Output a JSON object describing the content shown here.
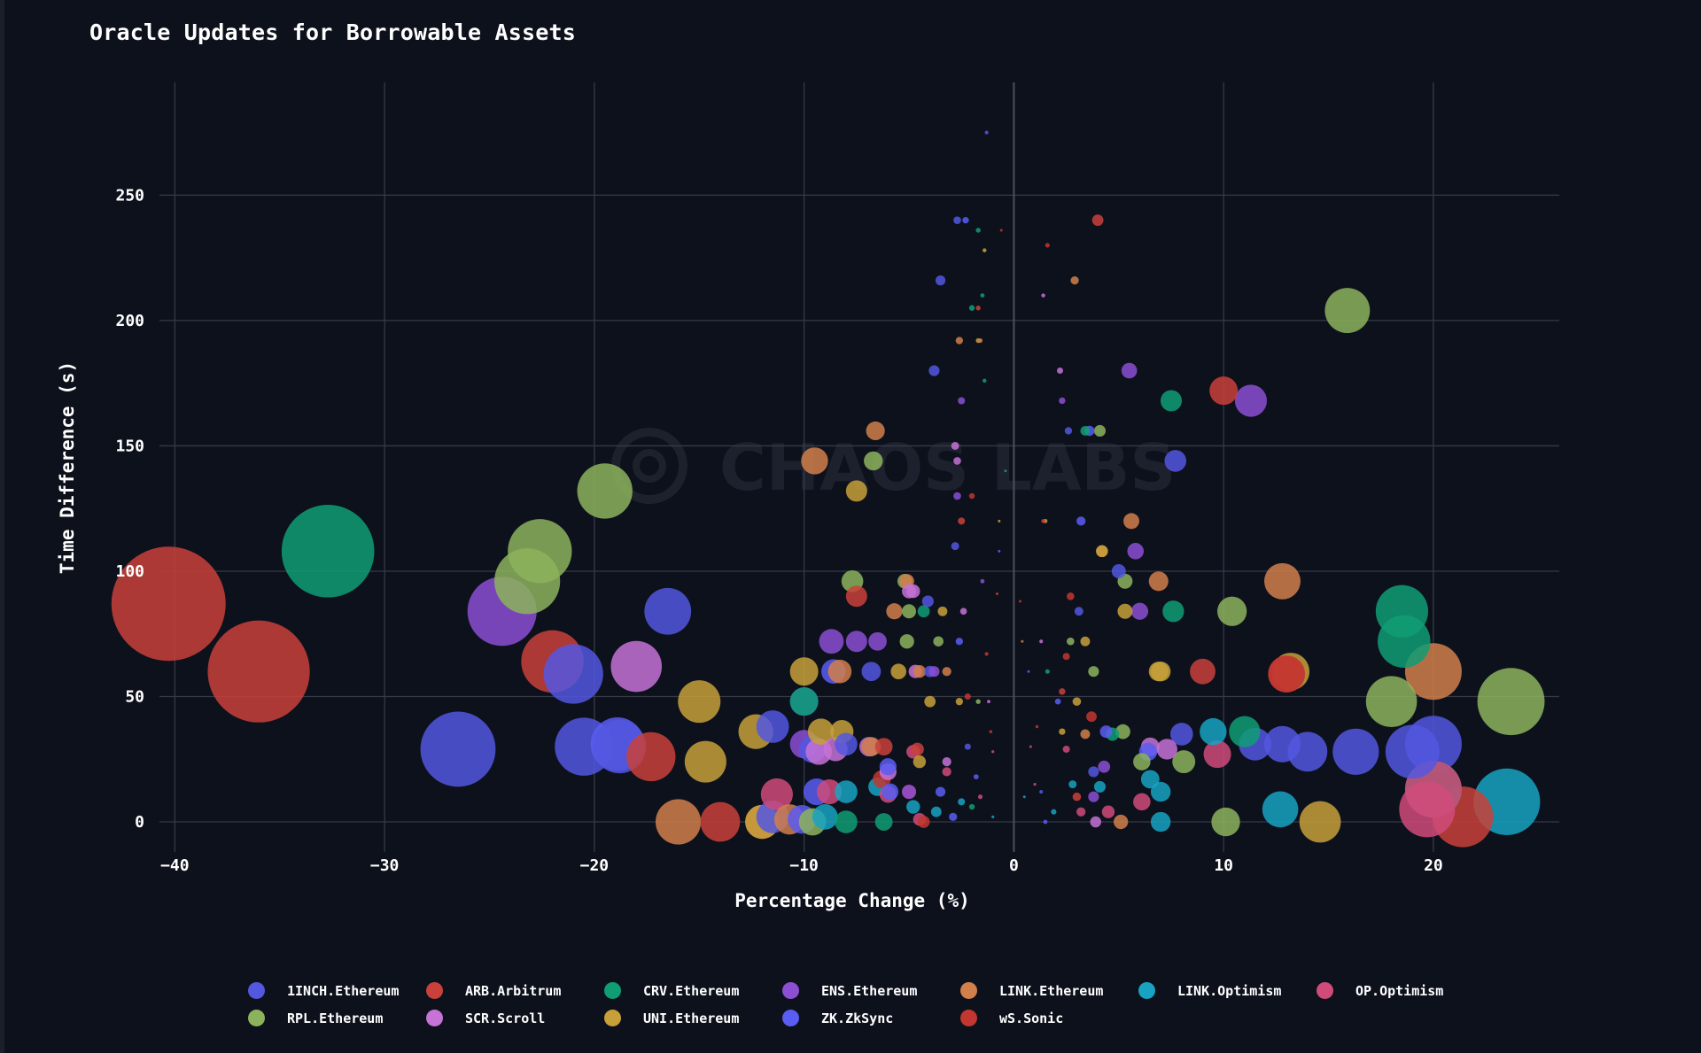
{
  "title": "Oracle Updates for Borrowable Assets",
  "watermark": "CHAOS LABS",
  "chart_data": {
    "type": "scatter",
    "title": "Oracle Updates for Borrowable Assets",
    "xlabel": "Percentage Change (%)",
    "ylabel": "Time Difference (s)",
    "xlim": [
      -42,
      26
    ],
    "ylim": [
      -12,
      295
    ],
    "xticks": [
      -40,
      -30,
      -20,
      -10,
      0,
      10,
      20
    ],
    "yticks": [
      0,
      50,
      100,
      150,
      200,
      250
    ],
    "grid": true,
    "legend_position": "bottom",
    "bubble_size": "proportional to |percentage change|",
    "series": [
      {
        "name": "1INCH.Ethereum",
        "color": "#5457e0",
        "points": [
          [
            -26.5,
            29
          ],
          [
            -20.5,
            30
          ],
          [
            -18.8,
            30
          ],
          [
            -16.5,
            84
          ],
          [
            -21,
            59
          ],
          [
            -11.5,
            38
          ],
          [
            -10,
            48
          ],
          [
            -9.6,
            29
          ],
          [
            -8,
            31
          ],
          [
            -6.8,
            60
          ],
          [
            -3.5,
            216
          ],
          [
            -3.8,
            180
          ],
          [
            -2.8,
            110
          ],
          [
            -1.3,
            275
          ],
          [
            -2.7,
            240
          ],
          [
            5,
            100
          ],
          [
            7.7,
            144
          ],
          [
            8,
            35
          ],
          [
            11.5,
            31
          ],
          [
            12.8,
            31
          ],
          [
            14,
            28
          ],
          [
            16.3,
            28
          ],
          [
            19,
            28
          ],
          [
            20,
            31
          ],
          [
            -11.5,
            2
          ],
          [
            -4.1,
            88
          ],
          [
            2.6,
            156
          ],
          [
            -2.2,
            30
          ],
          [
            3.1,
            84
          ],
          [
            1.3,
            12
          ],
          [
            -4,
            60
          ],
          [
            3.8,
            20
          ]
        ]
      },
      {
        "name": "ARB.Arbitrum",
        "color": "#c9413a",
        "points": [
          [
            -40.3,
            87
          ],
          [
            -36,
            60
          ],
          [
            -22,
            64
          ],
          [
            -17.3,
            26
          ],
          [
            -14,
            0
          ],
          [
            -7.5,
            90
          ],
          [
            -5,
            12
          ],
          [
            -1.7,
            205
          ],
          [
            4,
            240
          ],
          [
            9,
            60
          ],
          [
            10,
            172
          ],
          [
            13,
            59
          ],
          [
            21.4,
            2
          ],
          [
            -4.6,
            29
          ],
          [
            2.3,
            52
          ],
          [
            -2.5,
            120
          ],
          [
            1.4,
            120
          ],
          [
            -0.8,
            91
          ],
          [
            3,
            10
          ],
          [
            -6.2,
            30
          ]
        ]
      },
      {
        "name": "CRV.Ethereum",
        "color": "#0f9d74",
        "points": [
          [
            -32.7,
            108
          ],
          [
            -10,
            48
          ],
          [
            -8,
            0
          ],
          [
            -6.2,
            0
          ],
          [
            1.6,
            60
          ],
          [
            7.5,
            168
          ],
          [
            7.6,
            84
          ],
          [
            18.5,
            84
          ],
          [
            18.6,
            72
          ],
          [
            20,
            13
          ],
          [
            11,
            36
          ],
          [
            -1.4,
            176
          ],
          [
            -1.5,
            210
          ],
          [
            -1.7,
            236
          ],
          [
            -2,
            205
          ],
          [
            -4.3,
            84
          ],
          [
            3.4,
            156
          ],
          [
            -0.4,
            140
          ],
          [
            4.7,
            35
          ],
          [
            -2,
            6
          ]
        ]
      },
      {
        "name": "ENS.Ethereum",
        "color": "#8c4fd4",
        "points": [
          [
            -24.4,
            84
          ],
          [
            -8.7,
            72
          ],
          [
            -7.5,
            72
          ],
          [
            -6.5,
            72
          ],
          [
            -2.5,
            168
          ],
          [
            -2.7,
            130
          ],
          [
            -1.5,
            96
          ],
          [
            5.5,
            180
          ],
          [
            5.8,
            108
          ],
          [
            6,
            84
          ],
          [
            11.3,
            168
          ],
          [
            -3.8,
            60
          ],
          [
            2.3,
            168
          ],
          [
            -10,
            31
          ],
          [
            -5,
            12
          ],
          [
            4.3,
            22
          ],
          [
            3.8,
            10
          ]
        ]
      },
      {
        "name": "LINK.Ethereum",
        "color": "#d17f4b",
        "points": [
          [
            -9.5,
            144
          ],
          [
            -8.3,
            60
          ],
          [
            -6.6,
            156
          ],
          [
            -5.7,
            84
          ],
          [
            -5.1,
            96
          ],
          [
            -2.6,
            192
          ],
          [
            -1.6,
            192
          ],
          [
            2.9,
            216
          ],
          [
            4.2,
            108
          ],
          [
            5.6,
            120
          ],
          [
            6.9,
            96
          ],
          [
            12.8,
            96
          ],
          [
            20,
            60
          ],
          [
            -16,
            0
          ],
          [
            -12,
            0
          ],
          [
            -10.7,
            1
          ],
          [
            -3.2,
            60
          ],
          [
            0.4,
            72
          ],
          [
            3.4,
            35
          ],
          [
            5.1,
            0
          ],
          [
            -4.5,
            60
          ],
          [
            -6.8,
            30
          ]
        ]
      },
      {
        "name": "LINK.Optimism",
        "color": "#18a3c2",
        "points": [
          [
            23.5,
            8
          ],
          [
            12.7,
            5
          ],
          [
            7,
            0
          ],
          [
            6.5,
            17
          ],
          [
            7,
            12
          ],
          [
            9.5,
            36
          ],
          [
            -4.8,
            6
          ],
          [
            -3.7,
            4
          ],
          [
            -8,
            12
          ],
          [
            -9,
            2
          ],
          [
            1.9,
            4
          ],
          [
            4.1,
            14
          ],
          [
            -2.5,
            8
          ],
          [
            -6.5,
            14
          ],
          [
            -1,
            2
          ],
          [
            0.5,
            10
          ],
          [
            2.8,
            15
          ]
        ]
      },
      {
        "name": "OP.Optimism",
        "color": "#d04b7a",
        "points": [
          [
            19.7,
            5
          ],
          [
            20,
            13
          ],
          [
            9.7,
            27
          ],
          [
            -11.3,
            11
          ],
          [
            -8.8,
            12
          ],
          [
            -6,
            11
          ],
          [
            -4.5,
            1
          ],
          [
            -4.8,
            28
          ],
          [
            6.1,
            8
          ],
          [
            4.5,
            4
          ],
          [
            1,
            15
          ],
          [
            -1,
            28
          ],
          [
            -3.2,
            20
          ],
          [
            2.5,
            29
          ],
          [
            -1.6,
            10
          ],
          [
            3.2,
            4
          ],
          [
            0.8,
            30
          ]
        ]
      },
      {
        "name": "RPL.Ethereum",
        "color": "#8cb35c",
        "points": [
          [
            -19.5,
            132
          ],
          [
            -22.6,
            108
          ],
          [
            -23.2,
            96
          ],
          [
            -7.7,
            96
          ],
          [
            -6.7,
            144
          ],
          [
            -5,
            84
          ],
          [
            -5.2,
            96
          ],
          [
            -5.1,
            72
          ],
          [
            4.1,
            156
          ],
          [
            5.3,
            96
          ],
          [
            10.4,
            84
          ],
          [
            15.9,
            204
          ],
          [
            18,
            48
          ],
          [
            23.7,
            48
          ],
          [
            10.1,
            0
          ],
          [
            8.1,
            24
          ],
          [
            -9.6,
            0
          ],
          [
            -1.7,
            48
          ],
          [
            2.7,
            72
          ],
          [
            3.8,
            60
          ],
          [
            5.2,
            36
          ],
          [
            -3.6,
            72
          ],
          [
            6.1,
            24
          ]
        ]
      },
      {
        "name": "SCR.Scroll",
        "color": "#c672d6",
        "points": [
          [
            -18,
            62
          ],
          [
            -9.3,
            28
          ],
          [
            -8.5,
            29
          ],
          [
            -6.9,
            30
          ],
          [
            -4.7,
            60
          ],
          [
            -4.8,
            92
          ],
          [
            -5,
            92
          ],
          [
            -2.8,
            150
          ],
          [
            -2.7,
            144
          ],
          [
            -2.4,
            84
          ],
          [
            1.4,
            210
          ],
          [
            2.2,
            180
          ],
          [
            7.3,
            29
          ],
          [
            6.5,
            30
          ],
          [
            1.3,
            72
          ],
          [
            -3.2,
            24
          ],
          [
            -6,
            20
          ],
          [
            3.9,
            0
          ],
          [
            -1.2,
            48
          ]
        ]
      },
      {
        "name": "UNI.Ethereum",
        "color": "#c7a03a",
        "points": [
          [
            -15,
            48
          ],
          [
            -14.7,
            24
          ],
          [
            -12.3,
            36
          ],
          [
            -10,
            60
          ],
          [
            -9.2,
            36
          ],
          [
            -8.2,
            36
          ],
          [
            -7.5,
            132
          ],
          [
            -12,
            0
          ],
          [
            14.6,
            0
          ],
          [
            13.2,
            60
          ],
          [
            4.2,
            108
          ],
          [
            5.3,
            84
          ],
          [
            6.9,
            60
          ],
          [
            7,
            60
          ],
          [
            3.4,
            72
          ],
          [
            -4.5,
            24
          ],
          [
            -5.5,
            60
          ],
          [
            -1.4,
            228
          ],
          [
            -1.7,
            192
          ],
          [
            -3.4,
            84
          ],
          [
            3,
            48
          ],
          [
            1.5,
            120
          ],
          [
            -0.7,
            120
          ],
          [
            2.3,
            36
          ],
          [
            -2.6,
            48
          ],
          [
            -4,
            48
          ]
        ]
      },
      {
        "name": "ZK.ZkSync",
        "color": "#5a5df2",
        "points": [
          [
            -18.9,
            31
          ],
          [
            -8.6,
            60
          ],
          [
            -9.4,
            12
          ],
          [
            -10.1,
            1
          ],
          [
            -5.9,
            12
          ],
          [
            -2.3,
            240
          ],
          [
            -0.7,
            108
          ],
          [
            3.2,
            120
          ],
          [
            3.6,
            156
          ],
          [
            -2.6,
            72
          ],
          [
            -3.5,
            12
          ],
          [
            0.7,
            60
          ],
          [
            2.1,
            48
          ],
          [
            4.4,
            36
          ],
          [
            -6,
            22
          ],
          [
            -1.8,
            18
          ],
          [
            -2.9,
            2
          ],
          [
            1.5,
            0
          ],
          [
            6.4,
            28
          ]
        ]
      },
      {
        "name": "wS.Sonic",
        "color": "#c2372f",
        "points": [
          [
            13,
            59
          ],
          [
            -1.1,
            36
          ],
          [
            2.5,
            66
          ],
          [
            -6.3,
            17
          ],
          [
            -2,
            130
          ],
          [
            1.1,
            38
          ],
          [
            3.7,
            42
          ],
          [
            -4.3,
            0
          ],
          [
            -2.2,
            50
          ],
          [
            0.3,
            88
          ],
          [
            -0.6,
            236
          ],
          [
            1.6,
            230
          ],
          [
            2.7,
            90
          ],
          [
            -1.3,
            67
          ]
        ]
      }
    ]
  },
  "legend": [
    {
      "label": "1INCH.Ethereum",
      "color": "#5457e0"
    },
    {
      "label": "ARB.Arbitrum",
      "color": "#c9413a"
    },
    {
      "label": "CRV.Ethereum",
      "color": "#0f9d74"
    },
    {
      "label": "ENS.Ethereum",
      "color": "#8c4fd4"
    },
    {
      "label": "LINK.Ethereum",
      "color": "#d17f4b"
    },
    {
      "label": "LINK.Optimism",
      "color": "#18a3c2"
    },
    {
      "label": "OP.Optimism",
      "color": "#d04b7a"
    },
    {
      "label": "RPL.Ethereum",
      "color": "#8cb35c"
    },
    {
      "label": "SCR.Scroll",
      "color": "#c672d6"
    },
    {
      "label": "UNI.Ethereum",
      "color": "#c7a03a"
    },
    {
      "label": "ZK.ZkSync",
      "color": "#5a5df2"
    },
    {
      "label": "wS.Sonic",
      "color": "#c2372f"
    }
  ]
}
